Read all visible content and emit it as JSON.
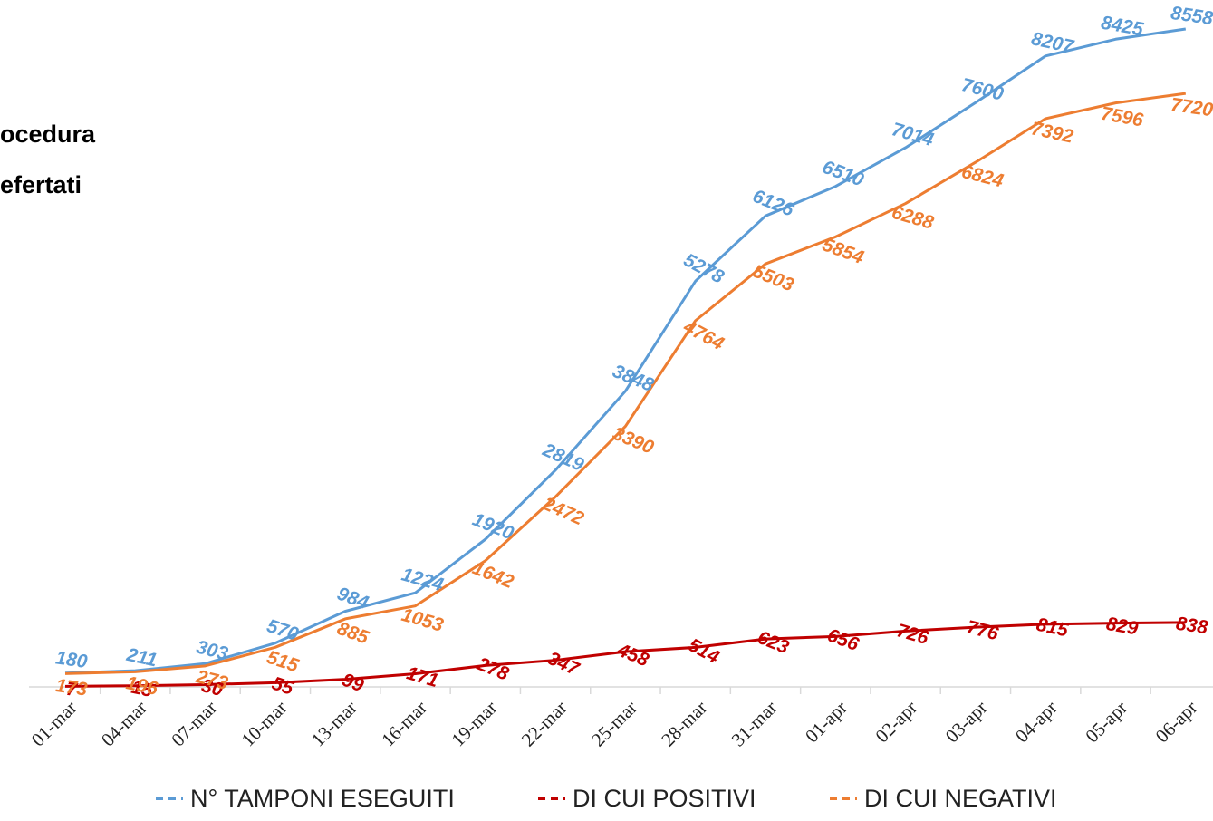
{
  "side_title": {
    "line1": "ocedura",
    "line2": "efertati"
  },
  "colors": {
    "tamponi": "#5b9bd5",
    "positivi": "#c00000",
    "negativi": "#ed7d31",
    "axis": "#d9d9d9",
    "tick_text": "#222222"
  },
  "chart_data": {
    "type": "line",
    "categories": [
      "01-mar",
      "04-mar",
      "07-mar",
      "10-mar",
      "13-mar",
      "16-mar",
      "19-mar",
      "22-mar",
      "25-mar",
      "28-mar",
      "31-mar",
      "01-apr",
      "02-apr",
      "03-apr",
      "04-apr",
      "05-apr",
      "06-apr"
    ],
    "series": [
      {
        "name": "N° TAMPONI ESEGUITI",
        "key": "tamponi",
        "values": [
          180,
          211,
          303,
          570,
          984,
          1224,
          1920,
          2819,
          3848,
          5278,
          6126,
          6510,
          7014,
          7600,
          8207,
          8425,
          8558
        ],
        "labels": [
          "180",
          "211",
          "303",
          "570",
          "984",
          "1224",
          "1920",
          "2819",
          "3848",
          "5278",
          "6126",
          "6510",
          "7014",
          "7600",
          "8207",
          "8425",
          "8558"
        ]
      },
      {
        "name": "DI CUI POSITIVI",
        "key": "positivi",
        "values": [
          7,
          15,
          30,
          55,
          99,
          171,
          278,
          347,
          458,
          514,
          623,
          656,
          726,
          776,
          815,
          829,
          838
        ],
        "labels": [
          "7",
          "15",
          "30",
          "55",
          "99",
          "171",
          "278",
          "347",
          "458",
          "514",
          "623",
          "656",
          "726",
          "776",
          "815",
          "829",
          "838"
        ]
      },
      {
        "name": "DI CUI NEGATIVI",
        "key": "negativi",
        "values": [
          173,
          196,
          273,
          515,
          885,
          1053,
          1642,
          2472,
          3390,
          4764,
          5503,
          5854,
          6288,
          6824,
          7392,
          7596,
          7720
        ],
        "labels": [
          "173",
          "196",
          "273",
          "515",
          "885",
          "1053",
          "1642",
          "2472",
          "3390",
          "4764",
          "5503",
          "5854",
          "6288",
          "6824",
          "7392",
          "7596",
          "7720"
        ]
      }
    ],
    "ylim": [
      0,
      8800
    ],
    "grid": false,
    "legend_position": "bottom"
  }
}
